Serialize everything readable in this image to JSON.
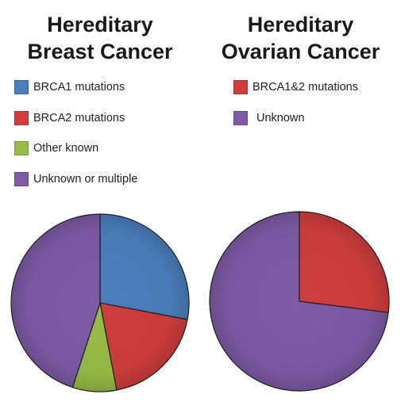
{
  "chart_data": [
    {
      "type": "pie",
      "title_lines": [
        "Hereditary",
        "Breast Cancer"
      ],
      "legend_placement": "top",
      "slices": [
        {
          "label": "BRCA1 mutations",
          "value": 28,
          "color": "#4a7ebb"
        },
        {
          "label": "BRCA2 mutations",
          "value": 19,
          "color": "#cf3e3d"
        },
        {
          "label": "Other known",
          "value": 8,
          "color": "#98bb45"
        },
        {
          "label": "Unknown or multiple",
          "value": 45,
          "color": "#7d5ba6"
        }
      ]
    },
    {
      "type": "pie",
      "title_lines": [
        "Hereditary",
        "Ovarian Cancer"
      ],
      "legend_placement": "top",
      "slices": [
        {
          "label": "BRCA1&2 mutations",
          "value": 27,
          "color": "#cf3e3d"
        },
        {
          "label": "Unknown",
          "value": 73,
          "color": "#7d5ba6"
        }
      ]
    }
  ]
}
